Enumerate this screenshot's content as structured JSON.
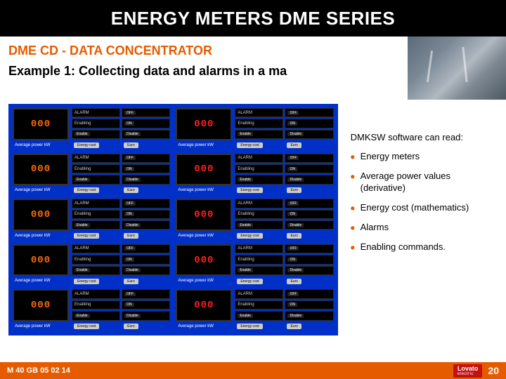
{
  "title": "ENERGY METERS DME SERIES",
  "subtitle1": "DME CD - DATA CONCENTRATOR",
  "subtitle2": "Example 1: Collecting data and alarms in a ma",
  "right": {
    "intro": "DMKSW software can read:",
    "items": [
      "Energy meters",
      "Average power values (derivative)",
      "Energy cost (mathematics)",
      "Alarms",
      "Enabling commands."
    ]
  },
  "meter_template": {
    "display_value": "000",
    "unit_label": "Average power   kW",
    "rows": [
      {
        "left_label": "ALARM",
        "left_val": "",
        "right_label": "",
        "right_val": "OFF"
      },
      {
        "left_label": "Enabling",
        "left_val": "",
        "right_label": "",
        "right_val": "ON"
      },
      {
        "left_label": "",
        "left_val": "Enable",
        "right_label": "",
        "right_val": "Disable"
      }
    ],
    "bottom": {
      "left": "Energy cost",
      "right": "Euro"
    }
  },
  "meters": [
    {
      "color": "#ff6a00"
    },
    {
      "color": "#ff2020"
    },
    {
      "color": "#ff6a00"
    },
    {
      "color": "#ff2020"
    },
    {
      "color": "#ff6a00"
    },
    {
      "color": "#ff2020"
    },
    {
      "color": "#ff6a00"
    },
    {
      "color": "#ff2020"
    },
    {
      "color": "#ff6a00"
    },
    {
      "color": "#ff2020"
    }
  ],
  "footer": {
    "code": "M 40 GB 05 02 14",
    "logo_top": "Lovato",
    "logo_bot": "electric",
    "page": "20"
  },
  "colors": {
    "brand_orange": "#e55b00",
    "grid_blue": "#0030c8",
    "logo_red": "#c41010"
  }
}
